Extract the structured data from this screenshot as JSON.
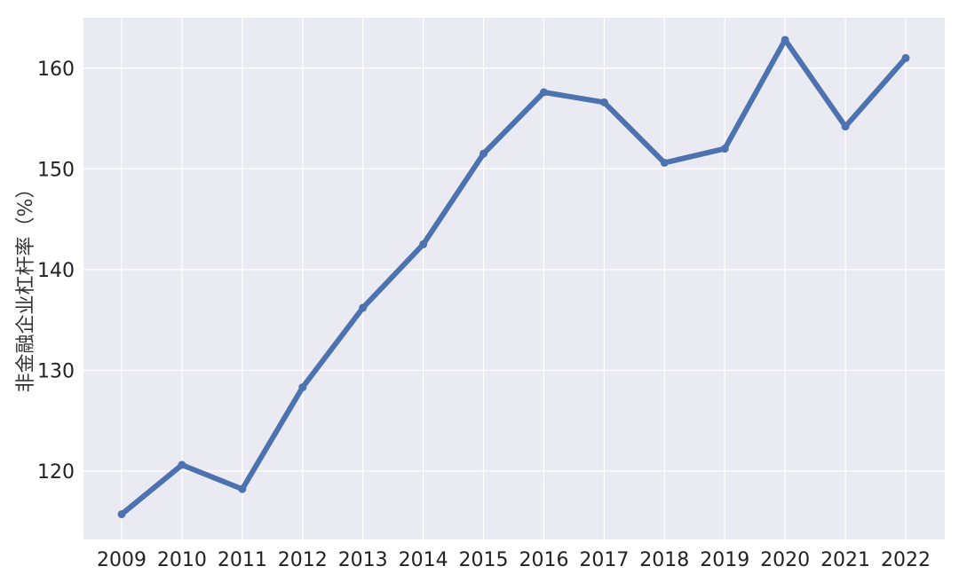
{
  "chart_data": {
    "type": "line",
    "title": "",
    "xlabel": "",
    "ylabel": "非金融企业杠杆率（%）",
    "x": [
      "2009",
      "2010",
      "2011",
      "2012",
      "2013",
      "2014",
      "2015",
      "2016",
      "2017",
      "2018",
      "2019",
      "2020",
      "2021",
      "2022"
    ],
    "series": [
      {
        "values": [
          115.7,
          120.6,
          118.2,
          128.3,
          136.2,
          142.5,
          151.5,
          157.6,
          156.6,
          150.6,
          152.0,
          162.8,
          154.2,
          161.0
        ]
      }
    ],
    "ylim": [
      113.2,
      165.0
    ],
    "yticks": [
      120,
      130,
      140,
      150,
      160
    ],
    "grid": true,
    "legend": "none",
    "colors": {
      "background": "#EAEAF2",
      "grid": "#FFFFFF",
      "line": "#4C72B0"
    }
  }
}
